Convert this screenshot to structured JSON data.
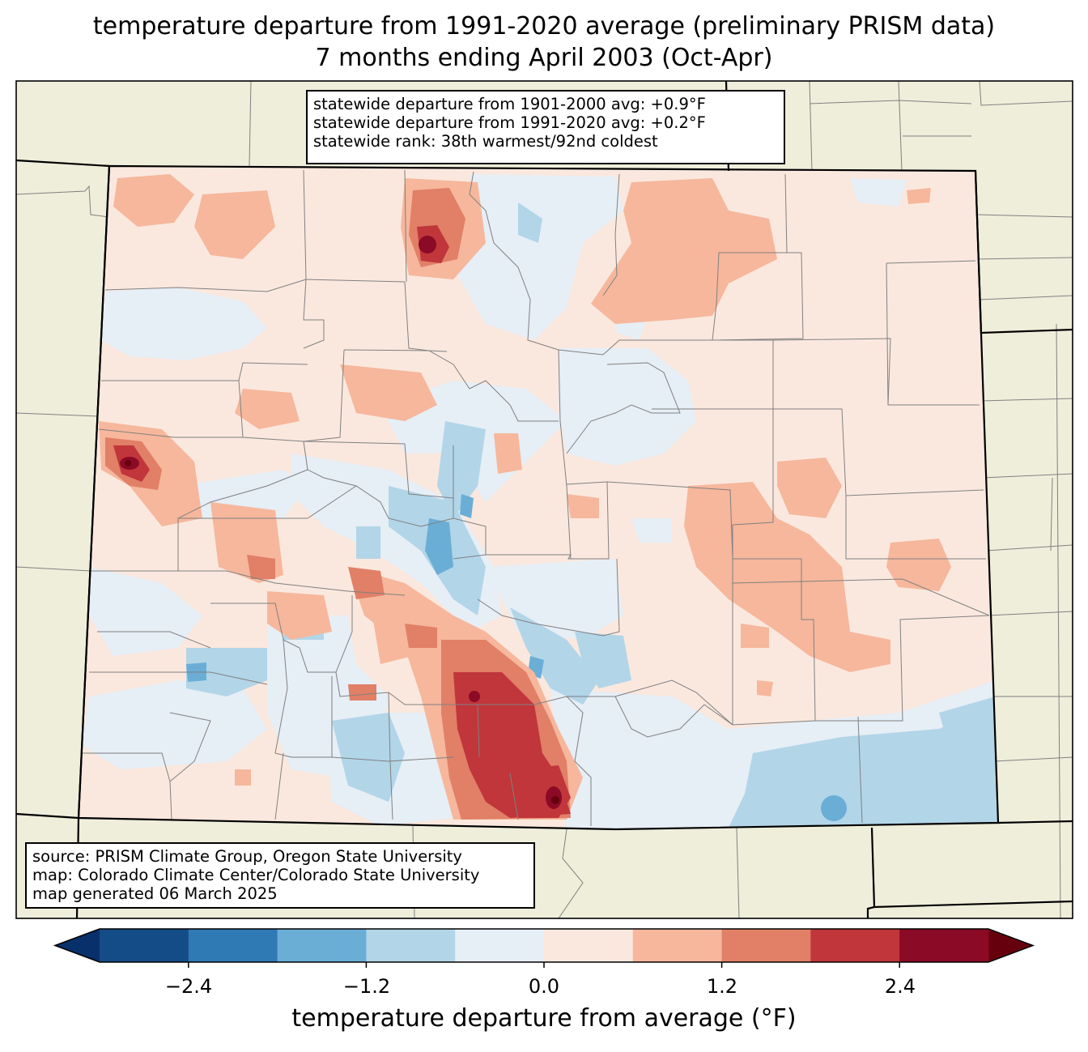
{
  "title": {
    "line1": "temperature departure from 1991-2020 average (preliminary PRISM data)",
    "line2": "7 months ending April 2003 (Oct-Apr)"
  },
  "stats": {
    "line1": "statewide departure from 1901-2000 avg: +0.9°F",
    "line2": "statewide departure from 1991-2020 avg: +0.2°F",
    "line3": "statewide rank: 38th warmest/92nd coldest"
  },
  "source": {
    "line1": "source: PRISM Climate Group, Oregon State University",
    "line2": "map: Colorado Climate Center/Colorado State University",
    "line3": "map generated 06 March 2025"
  },
  "colorbar": {
    "label": "temperature departure from average (°F)",
    "ticks": [
      "−2.4",
      "−1.2",
      "0.0",
      "1.2",
      "2.4"
    ],
    "levels": [
      -3.0,
      -2.4,
      -1.8,
      -1.2,
      -0.6,
      0.0,
      0.6,
      1.2,
      1.8,
      2.4,
      3.0
    ],
    "colors": [
      "#144c87",
      "#2f79b5",
      "#6aaed6",
      "#b2d5e8",
      "#e6eef6",
      "#fae8de",
      "#f6b79c",
      "#e17f67",
      "#c0363a",
      "#8b0a26"
    ],
    "under_color": "#08306b",
    "over_color": "#67000d"
  },
  "map_colors": {
    "land": "#efeedb",
    "county_lines": "#808080",
    "state_lines": "#000000"
  }
}
